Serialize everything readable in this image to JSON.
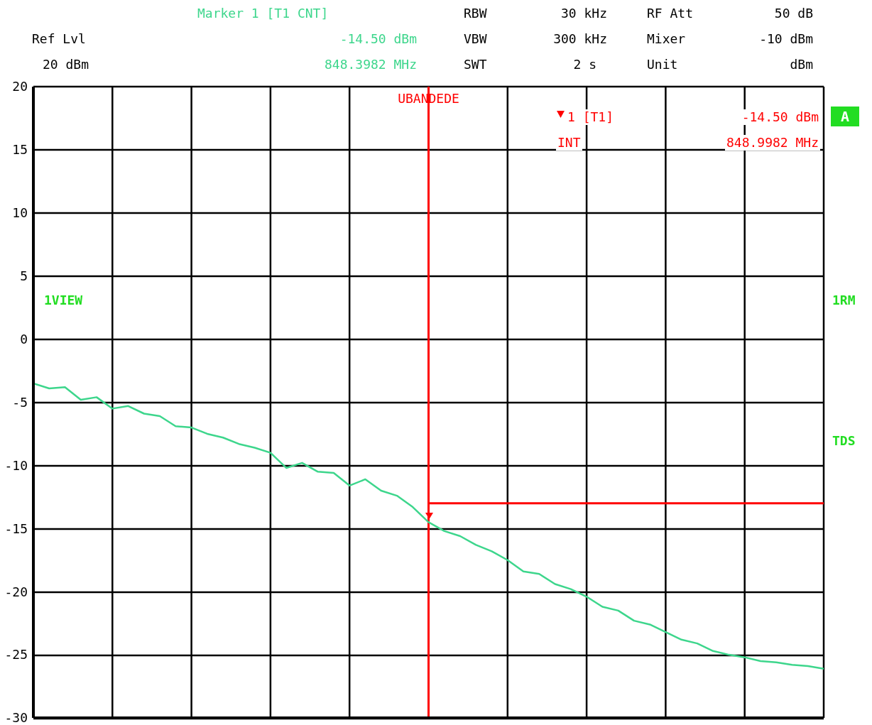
{
  "chart_data": {
    "type": "line",
    "categories": [
      null,
      null,
      null,
      null,
      null,
      null,
      null,
      null,
      null,
      null,
      null,
      null,
      null,
      null,
      null,
      null,
      null,
      null,
      null,
      null,
      null,
      null,
      null,
      null,
      null,
      null,
      null,
      null,
      null,
      null,
      null,
      null,
      null,
      null,
      null,
      null,
      null,
      null,
      null,
      null,
      null,
      null,
      null,
      null,
      null,
      null,
      null,
      null,
      null,
      null,
      null
    ],
    "ylim": [
      -30,
      20
    ],
    "yticks": [
      -30,
      -25,
      -20,
      -15,
      -10,
      -5,
      0,
      5,
      10,
      15,
      20
    ],
    "grid": true,
    "tick_labels": "y",
    "line_style": "solid",
    "marker": "none",
    "series": [
      {
        "color": "#3dd68c",
        "values": [
          -3.5,
          -3.9,
          -3.8,
          -4.8,
          -4.6,
          -5.5,
          -5.3,
          -5.9,
          -6.1,
          -6.9,
          -7.0,
          -7.5,
          -7.8,
          -8.3,
          -8.6,
          -9.0,
          -10.2,
          -9.8,
          -10.5,
          -10.6,
          -11.6,
          -11.1,
          -12.0,
          -12.4,
          -13.3,
          -14.5,
          -15.2,
          -15.6,
          -16.3,
          -16.8,
          -17.5,
          -18.4,
          -18.6,
          -19.4,
          -19.8,
          -20.4,
          -21.2,
          -21.5,
          -22.3,
          -22.6,
          -23.2,
          -23.8,
          -24.1,
          -24.7,
          -25.0,
          -25.2,
          -25.5,
          -25.6,
          -25.8,
          -25.9,
          -26.1
        ]
      }
    ],
    "ref_lines": [
      {
        "axis": "x",
        "label": "UBANDEDE",
        "color": "#ff0000"
      },
      {
        "axis": "y",
        "value": -13,
        "color": "#ff0000"
      }
    ],
    "annotations": [
      "Marker 1 [T1 CNT]",
      "Ref Lvl",
      "-14.50 dBm",
      "20 dBm",
      "848.3982 MHz",
      "RBW",
      "30 kHz",
      "RF Att",
      "50 dB",
      "VBW",
      "300 kHz",
      "Mixer",
      "-10 dBm",
      "SWT",
      "2 s",
      "Unit",
      "dBm",
      "1VIEW",
      "1RM",
      "TDS",
      "A",
      "1 [T1]",
      "-14.50 dBm",
      "INT",
      "848.9982 MHz"
    ]
  }
}
